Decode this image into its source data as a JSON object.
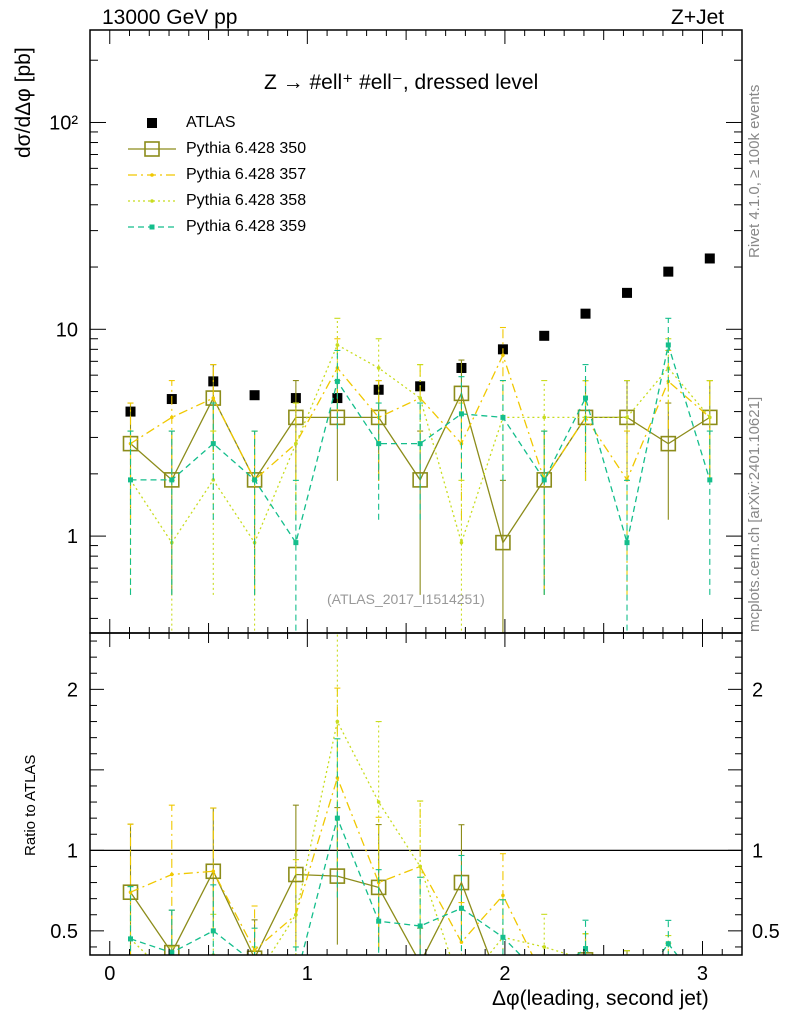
{
  "header": {
    "energy_label": "13000 GeV pp",
    "process_label": "Z+Jet"
  },
  "side_labels": {
    "rivet": "Rivet 4.1.0, ≥ 100k events",
    "mcplots": "mcplots.cern.ch [arXiv:2401.10621]"
  },
  "chart_data": {
    "type": "scatter",
    "title": "Z → #ell⁺ #ell⁻, dressed level",
    "analysis_tag": "(ATLAS_2017_I1514251)",
    "xlabel": "Δφ(leading, second jet)",
    "ylabel": "dσ/dΔφ [pb]",
    "ratio_ylabel": "Ratio to ATLAS",
    "xlim": [
      -0.1,
      3.2
    ],
    "ylim": [
      0.34,
      280
    ],
    "ratio_ylim": [
      0.35,
      2.35
    ],
    "log_y": true,
    "x_ticks": [
      0,
      1,
      2,
      3
    ],
    "y_ticks": [
      {
        "v": 1,
        "label": "1"
      },
      {
        "v": 10,
        "label": "10"
      },
      {
        "v": 100,
        "label": "10²"
      }
    ],
    "ratio_ticks": [
      0.5,
      1,
      1.5,
      2
    ],
    "ratio_tick_labels": [
      "0.5",
      "1",
      "2"
    ],
    "x": [
      0.105,
      0.314,
      0.524,
      0.733,
      0.942,
      1.152,
      1.361,
      1.571,
      1.78,
      1.99,
      2.199,
      2.408,
      2.618,
      2.827,
      3.037
    ],
    "series": [
      {
        "name": "ATLAS",
        "style": "data",
        "color": "#000000",
        "values": [
          4.0,
          4.6,
          5.6,
          4.8,
          4.65,
          4.65,
          5.1,
          5.3,
          6.5,
          8.0,
          9.3,
          11.9,
          15.0,
          19.0,
          22.0
        ],
        "ratio": null,
        "errors": null
      },
      {
        "name": "Pythia 6.428 350",
        "style": "solid",
        "color": "#8c8c1a",
        "values": [
          2.8,
          1.87,
          4.65,
          1.87,
          3.75,
          3.75,
          3.75,
          1.87,
          4.9,
          0.93,
          1.87,
          3.75,
          3.75,
          2.8,
          3.75
        ],
        "ratio": [
          0.74,
          0.365,
          0.87,
          0.33,
          0.85,
          0.84,
          0.77,
          0.3,
          0.8,
          0.12,
          0.2,
          0.32,
          0.25,
          0.15,
          0.17
        ],
        "errors": [
          1.6,
          1.35,
          2.1,
          1.35,
          1.9,
          1.9,
          1.9,
          1.35,
          2.2,
          0.93,
          1.35,
          1.9,
          1.9,
          1.6,
          1.9
        ]
      },
      {
        "name": "Pythia 6.428 357",
        "style": "dashdot",
        "color": "#f0c800",
        "values": [
          2.8,
          3.75,
          4.65,
          1.87,
          2.8,
          6.5,
          3.75,
          4.65,
          2.8,
          7.5,
          1.87,
          3.75,
          1.87,
          5.6,
          3.75
        ],
        "ratio": [
          0.74,
          0.85,
          0.87,
          0.38,
          0.6,
          1.45,
          0.8,
          0.9,
          0.43,
          0.72,
          0.2,
          0.32,
          0.12,
          0.3,
          0.17
        ],
        "errors": [
          1.6,
          1.9,
          2.1,
          1.35,
          1.6,
          2.5,
          1.9,
          2.1,
          1.6,
          2.7,
          1.35,
          1.9,
          1.35,
          2.3,
          1.9
        ]
      },
      {
        "name": "Pythia 6.428 358",
        "style": "dotted",
        "color": "#c8dc1e",
        "values": [
          1.87,
          0.93,
          1.87,
          0.93,
          2.8,
          8.4,
          6.5,
          4.65,
          0.93,
          3.75,
          3.75,
          3.75,
          3.75,
          6.5,
          3.75
        ],
        "ratio": [
          0.45,
          0.2,
          0.35,
          0.2,
          0.6,
          1.8,
          1.3,
          0.9,
          0.14,
          0.46,
          0.4,
          0.32,
          0.25,
          0.34,
          0.17
        ],
        "errors": [
          1.35,
          0.93,
          1.35,
          0.93,
          1.6,
          2.9,
          2.5,
          2.1,
          0.93,
          1.9,
          1.9,
          1.9,
          1.9,
          2.5,
          1.9
        ]
      },
      {
        "name": "Pythia 6.428 359",
        "style": "dashed",
        "color": "#14be8c",
        "values": [
          1.87,
          1.87,
          2.8,
          1.87,
          0.93,
          5.6,
          2.8,
          2.8,
          3.9,
          3.75,
          1.87,
          4.65,
          0.93,
          8.4,
          1.87
        ],
        "ratio": [
          0.45,
          0.365,
          0.5,
          0.3,
          0.2,
          1.2,
          0.56,
          0.53,
          0.64,
          0.46,
          0.2,
          0.39,
          0.06,
          0.42,
          0.09
        ],
        "errors": [
          1.35,
          1.35,
          1.6,
          1.35,
          0.93,
          2.3,
          1.6,
          1.6,
          2.0,
          1.9,
          1.35,
          2.1,
          0.93,
          2.9,
          1.35
        ]
      }
    ]
  }
}
